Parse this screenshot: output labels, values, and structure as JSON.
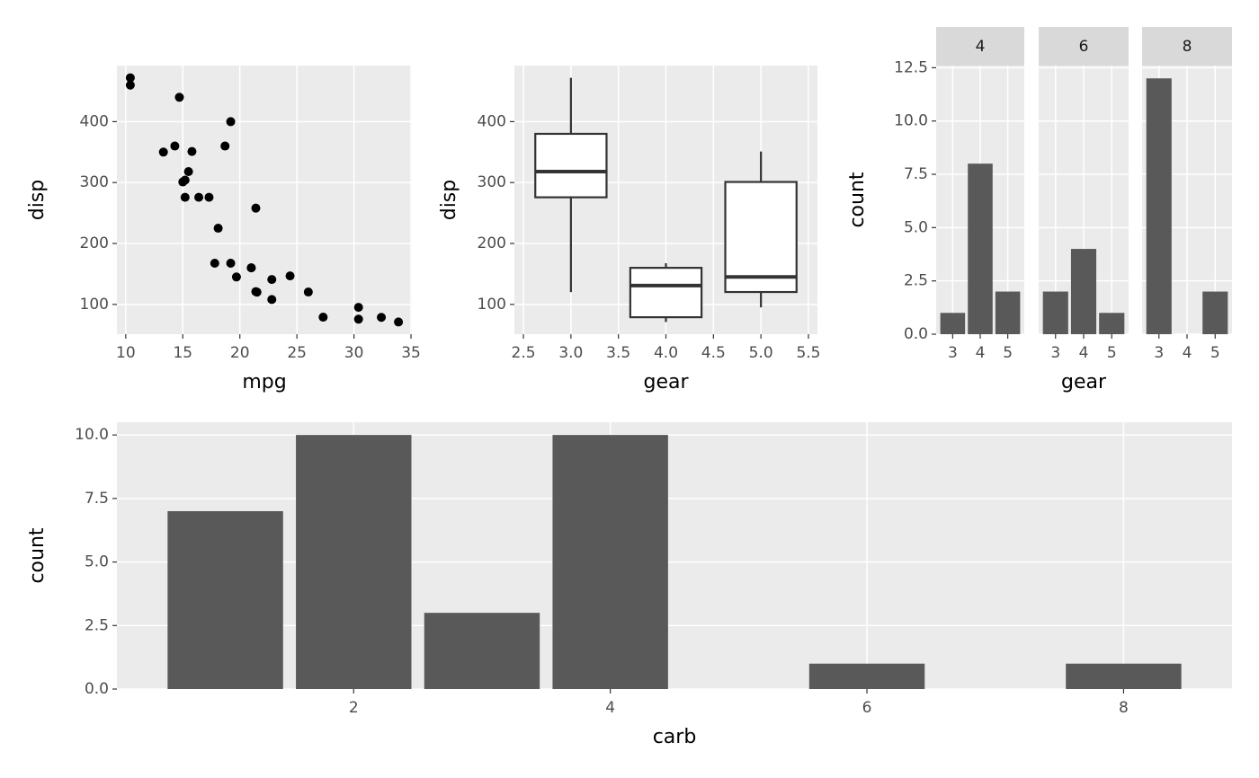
{
  "chart_data": [
    {
      "type": "scatter",
      "xlabel": "mpg",
      "ylabel": "disp",
      "x": [
        21.0,
        21.0,
        22.8,
        21.4,
        18.7,
        18.1,
        14.3,
        24.4,
        22.8,
        19.2,
        17.8,
        16.4,
        17.3,
        15.2,
        10.4,
        10.4,
        14.7,
        32.4,
        30.4,
        33.9,
        21.5,
        15.5,
        15.2,
        13.3,
        19.2,
        27.3,
        26.0,
        30.4,
        15.8,
        19.7,
        15.0,
        21.4
      ],
      "values": [
        160,
        160,
        108,
        258,
        360,
        225,
        360,
        146.7,
        140.8,
        167.6,
        167.6,
        275.8,
        275.8,
        275.8,
        472,
        460,
        440,
        78.7,
        75.7,
        71.1,
        120.1,
        318,
        304,
        350,
        400,
        79,
        120.3,
        95.1,
        351,
        145,
        301,
        121
      ],
      "color": "#000000",
      "xlim": [
        9.225,
        35.075
      ],
      "xticks": [
        10,
        15,
        20,
        25,
        30,
        35
      ],
      "ylim": [
        51.055,
        492.045
      ],
      "yticks": [
        100,
        200,
        300,
        400
      ],
      "grid": true
    },
    {
      "type": "box",
      "xlabel": "gear",
      "ylabel": "disp",
      "x": [
        3,
        4,
        5
      ],
      "min": [
        120.1,
        71.1,
        95.1
      ],
      "q1": [
        275.8,
        78.925,
        120.3
      ],
      "median": [
        318,
        130.9,
        145
      ],
      "q3": [
        380,
        160,
        301
      ],
      "max": [
        472,
        167.6,
        351
      ],
      "xlim": [
        2.405,
        5.595
      ],
      "xticks": [
        2.5,
        {
          "value": 3,
          "label": "3.0"
        },
        3.5,
        {
          "value": 4,
          "label": "4.0"
        },
        4.5,
        {
          "value": 5,
          "label": "5.0"
        },
        5.5
      ],
      "ylim": [
        51.055,
        492.045
      ],
      "yticks": [
        100,
        200,
        300,
        400
      ],
      "grid": true
    },
    {
      "type": "facet_bar",
      "xlabel": "gear",
      "ylabel": "count",
      "color": "#595959",
      "facets": [
        {
          "label": "4",
          "categories": [
            "3",
            "4",
            "5"
          ],
          "values": [
            1,
            8,
            2
          ]
        },
        {
          "label": "6",
          "categories": [
            "3",
            "4",
            "5"
          ],
          "values": [
            2,
            4,
            1
          ]
        },
        {
          "label": "8",
          "categories": [
            "3",
            "4",
            "5"
          ],
          "values": [
            12,
            0,
            2
          ]
        }
      ],
      "ylim": [
        0,
        12.6
      ],
      "yticks": [
        {
          "value": 0,
          "label": "0.0"
        },
        2.5,
        {
          "value": 5,
          "label": "5.0"
        },
        7.5,
        {
          "value": 10,
          "label": "10.0"
        },
        12.5
      ],
      "grid": true
    },
    {
      "type": "bar",
      "xlabel": "carb",
      "ylabel": "count",
      "color": "#595959",
      "x": [
        1,
        2,
        3,
        4,
        6,
        8
      ],
      "values": [
        7,
        10,
        3,
        10,
        1,
        1
      ],
      "xlim": [
        0.155,
        8.845
      ],
      "xticks": [
        2,
        4,
        6,
        8
      ],
      "ylim": [
        0,
        10.5
      ],
      "yticks": [
        {
          "value": 0,
          "label": "0.0"
        },
        2.5,
        {
          "value": 5,
          "label": "5.0"
        },
        7.5,
        {
          "value": 10,
          "label": "10.0"
        }
      ],
      "grid": true
    }
  ]
}
